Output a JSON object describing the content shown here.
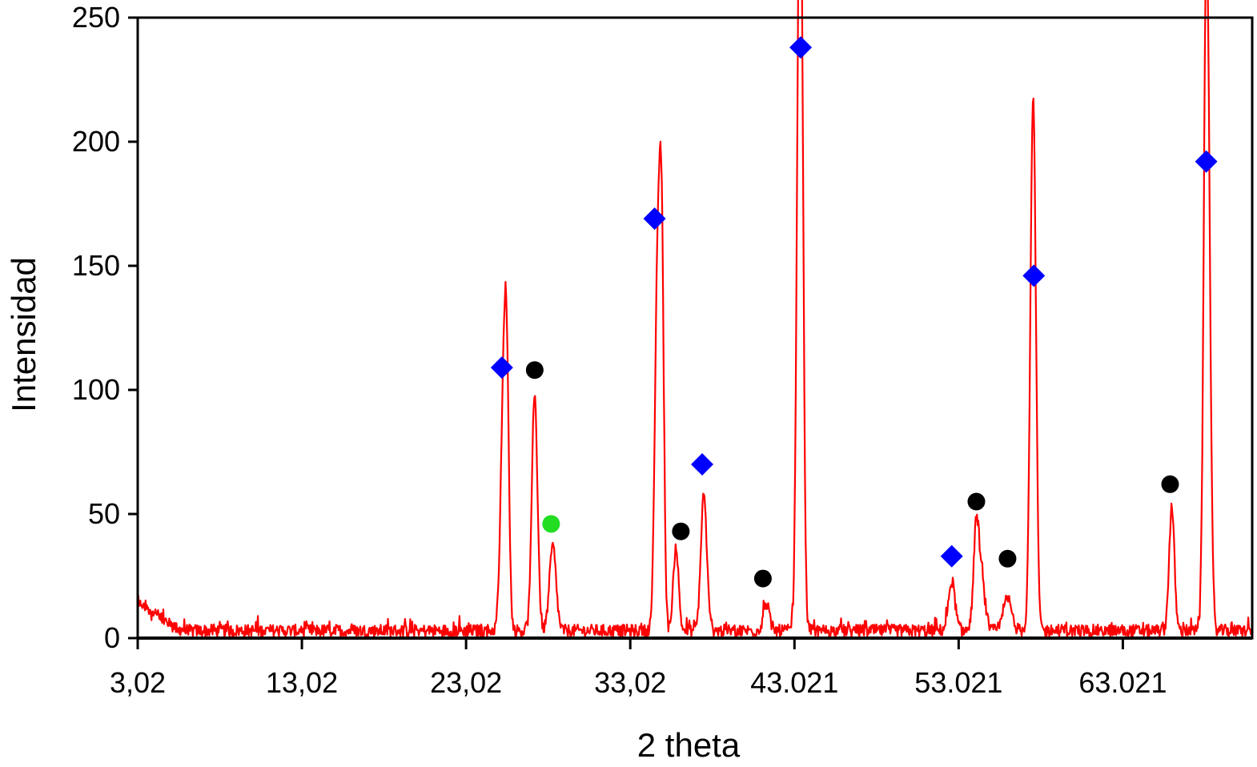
{
  "chart_data": {
    "type": "line",
    "title": "",
    "xlabel": "2 theta",
    "ylabel": "Intensidad",
    "xlim": [
      3.02,
      70.9
    ],
    "ylim": [
      0,
      250
    ],
    "grid": false,
    "x_ticks": [
      {
        "value": 3.02,
        "label": "3,02"
      },
      {
        "value": 13.02,
        "label": "13,02"
      },
      {
        "value": 23.02,
        "label": "23,02"
      },
      {
        "value": 33.02,
        "label": "33,02"
      },
      {
        "value": 43.021,
        "label": "43.021"
      },
      {
        "value": 53.021,
        "label": "53.021"
      },
      {
        "value": 63.021,
        "label": "63.021"
      }
    ],
    "y_ticks": [
      {
        "value": 0,
        "label": "0"
      },
      {
        "value": 50,
        "label": "50"
      },
      {
        "value": 100,
        "label": "100"
      },
      {
        "value": 150,
        "label": "150"
      },
      {
        "value": 200,
        "label": "200"
      },
      {
        "value": 250,
        "label": "250"
      }
    ],
    "line_color": "#ff0000",
    "baseline": {
      "level": 3,
      "noise": 2.5,
      "start_level": 14,
      "start_decay_to": 4.5
    },
    "peaks": [
      {
        "x": 25.3,
        "height": 88,
        "width": 0.18
      },
      {
        "x": 25.5,
        "height": 80,
        "width": 0.14
      },
      {
        "x": 27.2,
        "height": 95,
        "width": 0.17
      },
      {
        "x": 28.3,
        "height": 34,
        "width": 0.2
      },
      {
        "x": 34.7,
        "height": 150,
        "width": 0.17
      },
      {
        "x": 34.95,
        "height": 125,
        "width": 0.13
      },
      {
        "x": 35.8,
        "height": 34,
        "width": 0.16
      },
      {
        "x": 37.5,
        "height": 55,
        "width": 0.18
      },
      {
        "x": 41.3,
        "height": 11,
        "width": 0.18
      },
      {
        "x": 43.3,
        "height": 220,
        "width": 0.15
      },
      {
        "x": 43.45,
        "height": 160,
        "width": 0.14
      },
      {
        "x": 52.6,
        "height": 20,
        "width": 0.2
      },
      {
        "x": 54.1,
        "height": 42,
        "width": 0.17
      },
      {
        "x": 54.45,
        "height": 18,
        "width": 0.2
      },
      {
        "x": 56.0,
        "height": 13,
        "width": 0.25
      },
      {
        "x": 57.6,
        "height": 130,
        "width": 0.16
      },
      {
        "x": 57.5,
        "height": 95,
        "width": 0.16
      },
      {
        "x": 66.0,
        "height": 50,
        "width": 0.16
      },
      {
        "x": 68.2,
        "height": 180,
        "width": 0.16
      },
      {
        "x": 68.05,
        "height": 140,
        "width": 0.14
      }
    ],
    "markers": [
      {
        "shape": "diamond",
        "color": "#0000ff",
        "x": 25.2,
        "y": 109
      },
      {
        "shape": "circle",
        "color": "#000000",
        "x": 27.2,
        "y": 108
      },
      {
        "shape": "circle",
        "color": "#22dd22",
        "x": 28.2,
        "y": 46
      },
      {
        "shape": "diamond",
        "color": "#0000ff",
        "x": 34.5,
        "y": 169
      },
      {
        "shape": "circle",
        "color": "#000000",
        "x": 36.1,
        "y": 43
      },
      {
        "shape": "diamond",
        "color": "#0000ff",
        "x": 37.4,
        "y": 70
      },
      {
        "shape": "circle",
        "color": "#000000",
        "x": 41.1,
        "y": 24
      },
      {
        "shape": "diamond",
        "color": "#0000ff",
        "x": 43.4,
        "y": 238
      },
      {
        "shape": "diamond",
        "color": "#0000ff",
        "x": 52.6,
        "y": 33
      },
      {
        "shape": "circle",
        "color": "#000000",
        "x": 54.1,
        "y": 55
      },
      {
        "shape": "circle",
        "color": "#000000",
        "x": 56.0,
        "y": 32
      },
      {
        "shape": "diamond",
        "color": "#0000ff",
        "x": 57.6,
        "y": 146
      },
      {
        "shape": "circle",
        "color": "#000000",
        "x": 65.9,
        "y": 62
      },
      {
        "shape": "diamond",
        "color": "#0000ff",
        "x": 68.1,
        "y": 192
      }
    ]
  }
}
